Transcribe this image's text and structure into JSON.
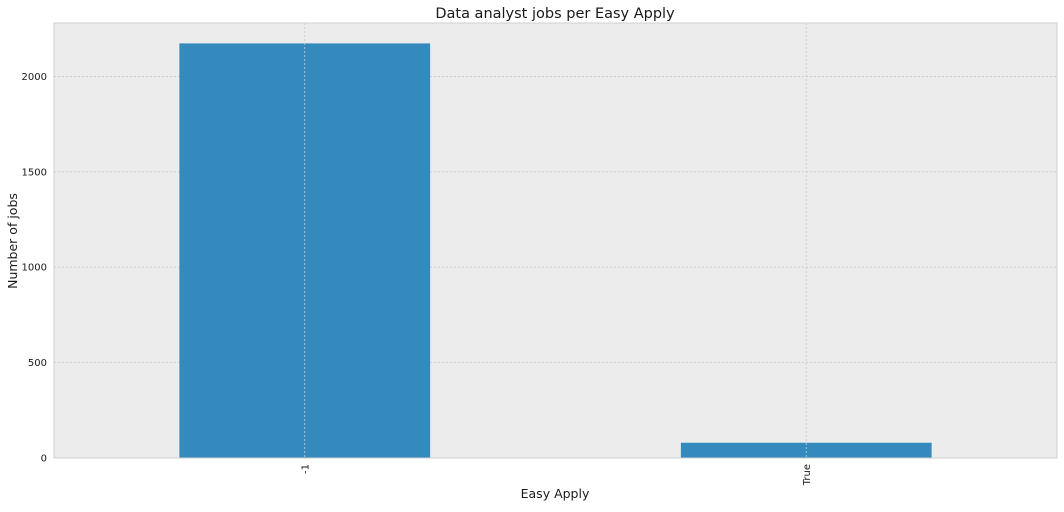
{
  "chart_data": {
    "type": "bar",
    "title": "Data analyst jobs per Easy Apply",
    "xlabel": "Easy Apply",
    "ylabel": "Number of jobs",
    "categories": [
      "-1",
      "True"
    ],
    "values": [
      2173,
      80
    ],
    "ylim": [
      0,
      2280
    ],
    "yticks": [
      0,
      500,
      1000,
      1500,
      2000
    ],
    "grid": true,
    "legend": "none",
    "colors": {
      "bar": "#348ABD",
      "plot_background": "#ECECEC",
      "grid": "#C8C8C8",
      "frame": "#CFCFCF"
    }
  }
}
